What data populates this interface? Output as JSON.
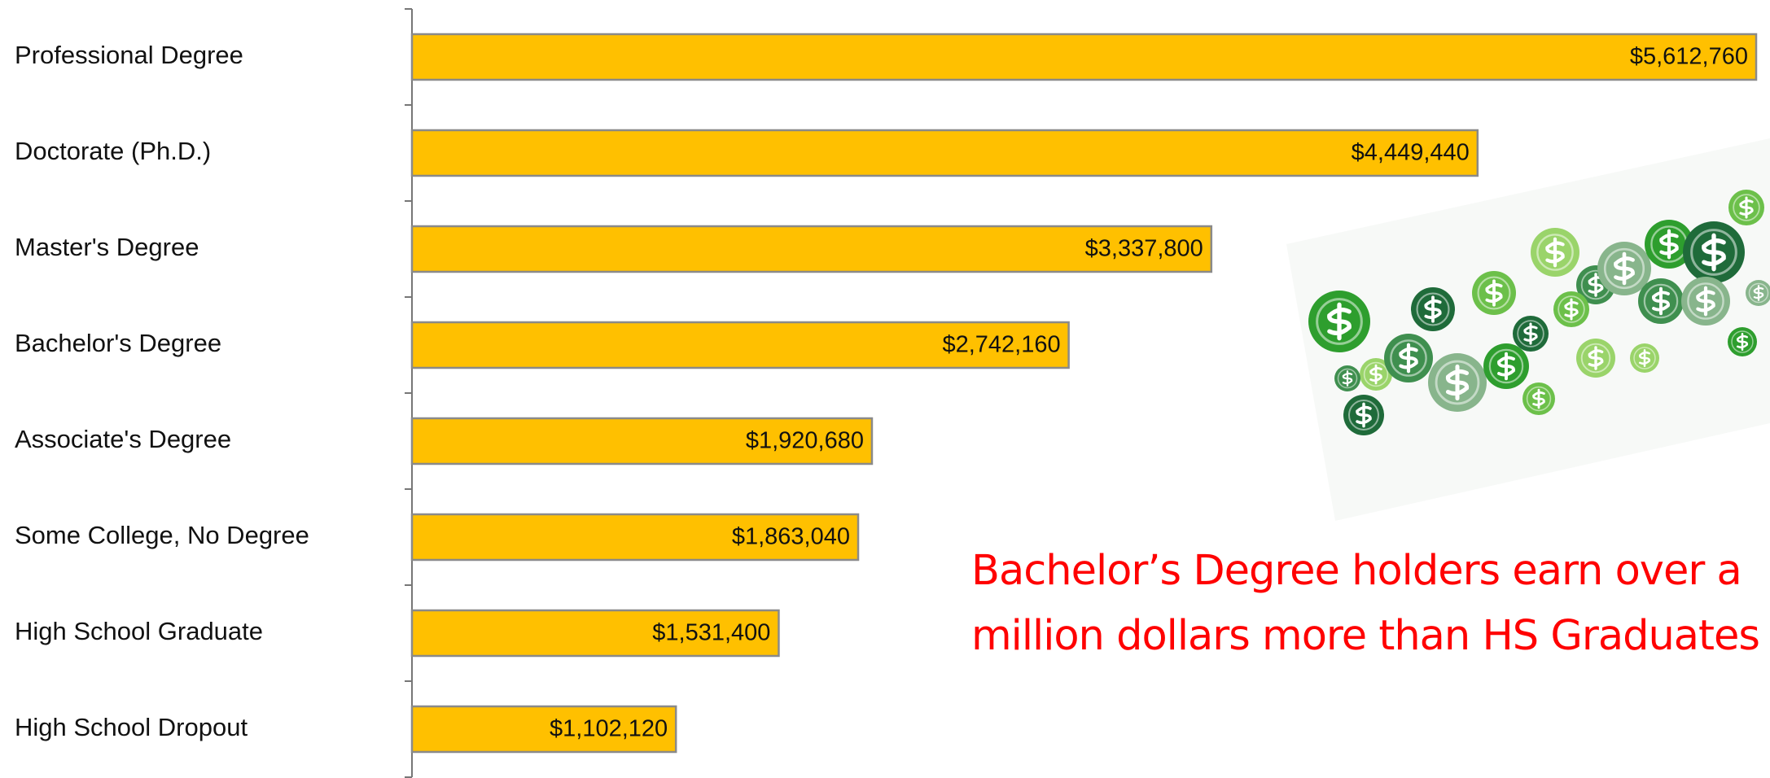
{
  "chart_data": {
    "type": "bar",
    "orientation": "horizontal",
    "categories": [
      "Professional Degree",
      "Doctorate (Ph.D.)",
      "Master's Degree",
      "Bachelor's Degree",
      "Associate's Degree",
      "Some College, No Degree",
      "High School Graduate",
      "High School Dropout"
    ],
    "values": [
      5612760,
      4449440,
      3337800,
      2742160,
      1920680,
      1863040,
      1531400,
      1102120
    ],
    "value_labels": [
      "$5,612,760",
      "$4,449,440",
      "$3,337,800",
      "$2,742,160",
      "$1,920,680",
      "$1,863,040",
      "$1,531,400",
      "$1,102,120"
    ],
    "color": "#ffc000",
    "annotation": "Bachelor’s Degree holders earn over a million dollars more than HS Graduates"
  }
}
